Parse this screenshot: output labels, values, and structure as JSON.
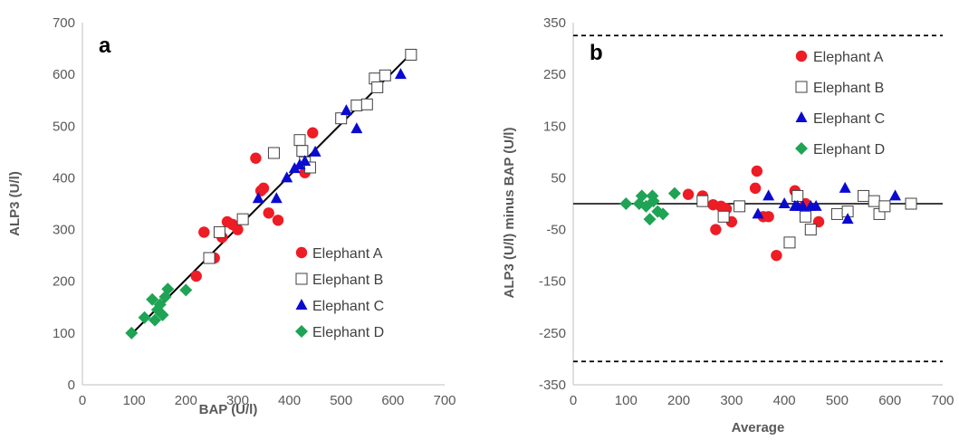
{
  "colors": {
    "elephant_a": "#ee1c25",
    "elephant_b": "#ffffff",
    "elephant_c": "#0a0ad0",
    "elephant_d": "#1fa354",
    "axis": "#bfbfbf",
    "text": "#595959"
  },
  "chart_data": [
    {
      "type": "scatter",
      "panel_label": "a",
      "xlabel": "BAP (U/l)",
      "ylabel": "ALP3 (U/l)",
      "xlim": [
        0,
        700
      ],
      "ylim": [
        0,
        700
      ],
      "x_ticks": [
        "0",
        "100",
        "200",
        "300",
        "400",
        "500",
        "600",
        "700"
      ],
      "y_ticks": [
        "0",
        "100",
        "200",
        "300",
        "400",
        "500",
        "600",
        "700"
      ],
      "grid": false,
      "legend_position": "bottom-right",
      "fit_line": {
        "x": [
          95,
          635
        ],
        "y": [
          98,
          640
        ]
      },
      "series": [
        {
          "name": "Elephant A",
          "marker": "circle",
          "points": [
            [
              220,
              210
            ],
            [
              235,
              295
            ],
            [
              255,
              245
            ],
            [
              270,
              285
            ],
            [
              280,
              315
            ],
            [
              290,
              310
            ],
            [
              300,
              300
            ],
            [
              335,
              438
            ],
            [
              345,
              375
            ],
            [
              350,
              380
            ],
            [
              360,
              332
            ],
            [
              378,
              318
            ],
            [
              430,
              410
            ],
            [
              445,
              487
            ]
          ]
        },
        {
          "name": "Elephant B",
          "marker": "square",
          "points": [
            [
              245,
              245
            ],
            [
              265,
              295
            ],
            [
              310,
              320
            ],
            [
              370,
              448
            ],
            [
              420,
              473
            ],
            [
              425,
              452
            ],
            [
              430,
              430
            ],
            [
              440,
              420
            ],
            [
              500,
              515
            ],
            [
              530,
              540
            ],
            [
              550,
              542
            ],
            [
              565,
              592
            ],
            [
              570,
              575
            ],
            [
              585,
              598
            ],
            [
              635,
              638
            ]
          ]
        },
        {
          "name": "Elephant C",
          "marker": "triangle",
          "points": [
            [
              340,
              360
            ],
            [
              375,
              360
            ],
            [
              395,
              400
            ],
            [
              410,
              418
            ],
            [
              420,
              425
            ],
            [
              430,
              432
            ],
            [
              450,
              450
            ],
            [
              510,
              530
            ],
            [
              530,
              495
            ],
            [
              615,
              600
            ]
          ]
        },
        {
          "name": "Elephant D",
          "marker": "diamond",
          "points": [
            [
              95,
              100
            ],
            [
              120,
              130
            ],
            [
              135,
              165
            ],
            [
              140,
              125
            ],
            [
              145,
              145
            ],
            [
              150,
              155
            ],
            [
              155,
              135
            ],
            [
              160,
              170
            ],
            [
              165,
              185
            ],
            [
              200,
              183
            ]
          ]
        }
      ]
    },
    {
      "type": "scatter",
      "panel_label": "b",
      "xlabel": "Average",
      "ylabel": "ALP3 (U/l) minus BAP (U/l)",
      "xlim": [
        0,
        700
      ],
      "ylim": [
        -350,
        350
      ],
      "x_ticks": [
        "0",
        "100",
        "200",
        "300",
        "400",
        "500",
        "600",
        "700"
      ],
      "y_ticks": [
        "-350",
        "-250",
        "-150",
        "-50",
        "50",
        "150",
        "250",
        "350"
      ],
      "y_tick_values": [
        -350,
        -250,
        -150,
        -50,
        50,
        150,
        250,
        350
      ],
      "grid": false,
      "legend_position": "top-right",
      "mean_line": 0,
      "limit_lines": [
        325,
        -305
      ],
      "series": [
        {
          "name": "Elephant A",
          "marker": "circle",
          "points": [
            [
              218,
              18
            ],
            [
              245,
              15
            ],
            [
              265,
              -2
            ],
            [
              270,
              -50
            ],
            [
              280,
              -5
            ],
            [
              290,
              -10
            ],
            [
              300,
              -35
            ],
            [
              348,
              63
            ],
            [
              345,
              30
            ],
            [
              360,
              -25
            ],
            [
              370,
              -25
            ],
            [
              385,
              -100
            ],
            [
              420,
              25
            ],
            [
              440,
              0
            ],
            [
              465,
              -35
            ]
          ]
        },
        {
          "name": "Elephant B",
          "marker": "square",
          "points": [
            [
              245,
              5
            ],
            [
              285,
              -25
            ],
            [
              315,
              -5
            ],
            [
              410,
              -75
            ],
            [
              425,
              15
            ],
            [
              440,
              -25
            ],
            [
              450,
              -50
            ],
            [
              500,
              -20
            ],
            [
              520,
              -15
            ],
            [
              550,
              15
            ],
            [
              570,
              5
            ],
            [
              580,
              -20
            ],
            [
              590,
              -5
            ],
            [
              640,
              0
            ]
          ]
        },
        {
          "name": "Elephant C",
          "marker": "triangle",
          "points": [
            [
              350,
              -20
            ],
            [
              370,
              15
            ],
            [
              400,
              0
            ],
            [
              420,
              -5
            ],
            [
              425,
              -5
            ],
            [
              435,
              -5
            ],
            [
              450,
              -5
            ],
            [
              460,
              -5
            ],
            [
              515,
              30
            ],
            [
              520,
              -30
            ],
            [
              610,
              15
            ]
          ]
        },
        {
          "name": "Elephant D",
          "marker": "diamond",
          "points": [
            [
              100,
              0
            ],
            [
              125,
              0
            ],
            [
              130,
              15
            ],
            [
              138,
              -5
            ],
            [
              145,
              -30
            ],
            [
              150,
              15
            ],
            [
              152,
              5
            ],
            [
              160,
              -15
            ],
            [
              170,
              -20
            ],
            [
              192,
              20
            ]
          ]
        }
      ]
    }
  ]
}
